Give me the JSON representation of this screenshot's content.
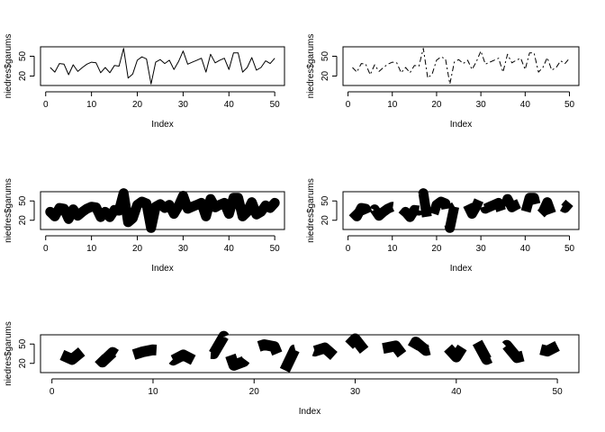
{
  "chart_data": [
    {
      "type": "line",
      "line_style": "solid",
      "line_weight": "thin",
      "xlabel": "Index",
      "ylabel": "niedres$garums",
      "xlim": [
        1,
        50
      ],
      "ylim": [
        8,
        62
      ],
      "xticks": [
        "0",
        "10",
        "20",
        "30",
        "40",
        "50"
      ],
      "yticks": [
        "20",
        "50"
      ],
      "x": [
        1,
        2,
        3,
        4,
        5,
        6,
        7,
        8,
        9,
        10,
        11,
        12,
        13,
        14,
        15,
        16,
        17,
        18,
        19,
        20,
        21,
        22,
        23,
        24,
        25,
        26,
        27,
        28,
        29,
        30,
        31,
        32,
        33,
        34,
        35,
        36,
        37,
        38,
        39,
        40,
        41,
        42,
        43,
        44,
        45,
        46,
        47,
        48,
        49,
        50
      ],
      "y": [
        33,
        26,
        39,
        38,
        22,
        37,
        27,
        33,
        38,
        41,
        40,
        25,
        33,
        25,
        36,
        35,
        62,
        17,
        23,
        44,
        49,
        46,
        8,
        41,
        45,
        39,
        44,
        30,
        42,
        58,
        38,
        41,
        44,
        47,
        26,
        53,
        40,
        44,
        47,
        30,
        55,
        55,
        26,
        33,
        48,
        29,
        33,
        43,
        39,
        47
      ]
    },
    {
      "type": "line",
      "line_style": "dashdot",
      "line_weight": "thin",
      "xlabel": "Index",
      "ylabel": "niedres$garums",
      "xlim": [
        1,
        50
      ],
      "ylim": [
        8,
        62
      ],
      "xticks": [
        "0",
        "10",
        "20",
        "30",
        "40",
        "50"
      ],
      "yticks": [
        "20",
        "50"
      ],
      "x": [
        1,
        2,
        3,
        4,
        5,
        6,
        7,
        8,
        9,
        10,
        11,
        12,
        13,
        14,
        15,
        16,
        17,
        18,
        19,
        20,
        21,
        22,
        23,
        24,
        25,
        26,
        27,
        28,
        29,
        30,
        31,
        32,
        33,
        34,
        35,
        36,
        37,
        38,
        39,
        40,
        41,
        42,
        43,
        44,
        45,
        46,
        47,
        48,
        49,
        50
      ],
      "y": [
        33,
        26,
        39,
        38,
        22,
        37,
        27,
        33,
        38,
        41,
        40,
        25,
        33,
        25,
        36,
        35,
        62,
        17,
        23,
        44,
        49,
        46,
        8,
        41,
        45,
        39,
        44,
        30,
        42,
        58,
        38,
        41,
        44,
        47,
        26,
        53,
        40,
        44,
        47,
        30,
        55,
        55,
        26,
        33,
        48,
        29,
        33,
        43,
        39,
        47
      ]
    },
    {
      "type": "line",
      "line_style": "dashed",
      "line_weight": "very thick",
      "xlabel": "Index",
      "ylabel": "niedres$garums",
      "xlim": [
        1,
        50
      ],
      "ylim": [
        8,
        62
      ],
      "xticks": [
        "0",
        "10",
        "20",
        "30",
        "40",
        "50"
      ],
      "yticks": [
        "20",
        "50"
      ],
      "x": [
        1,
        2,
        3,
        4,
        5,
        6,
        7,
        8,
        9,
        10,
        11,
        12,
        13,
        14,
        15,
        16,
        17,
        18,
        19,
        20,
        21,
        22,
        23,
        24,
        25,
        26,
        27,
        28,
        29,
        30,
        31,
        32,
        33,
        34,
        35,
        36,
        37,
        38,
        39,
        40,
        41,
        42,
        43,
        44,
        45,
        46,
        47,
        48,
        49,
        50
      ],
      "y": [
        33,
        26,
        39,
        38,
        22,
        37,
        27,
        33,
        38,
        41,
        40,
        25,
        33,
        25,
        36,
        35,
        62,
        17,
        23,
        44,
        49,
        46,
        8,
        41,
        45,
        39,
        44,
        30,
        42,
        58,
        38,
        41,
        44,
        47,
        26,
        53,
        40,
        44,
        47,
        30,
        55,
        55,
        26,
        33,
        48,
        29,
        33,
        43,
        39,
        47
      ]
    },
    {
      "type": "line",
      "line_style": "dotted",
      "line_weight": "very thick",
      "xlabel": "Index",
      "ylabel": "niedres$garums",
      "xlim": [
        1,
        50
      ],
      "ylim": [
        8,
        62
      ],
      "xticks": [
        "0",
        "10",
        "20",
        "30",
        "40",
        "50"
      ],
      "yticks": [
        "20",
        "50"
      ],
      "x": [
        1,
        2,
        3,
        4,
        5,
        6,
        7,
        8,
        9,
        10,
        11,
        12,
        13,
        14,
        15,
        16,
        17,
        18,
        19,
        20,
        21,
        22,
        23,
        24,
        25,
        26,
        27,
        28,
        29,
        30,
        31,
        32,
        33,
        34,
        35,
        36,
        37,
        38,
        39,
        40,
        41,
        42,
        43,
        44,
        45,
        46,
        47,
        48,
        49,
        50
      ],
      "y": [
        33,
        26,
        39,
        38,
        22,
        37,
        27,
        33,
        38,
        41,
        40,
        25,
        33,
        25,
        36,
        35,
        62,
        17,
        23,
        44,
        49,
        46,
        8,
        41,
        45,
        39,
        44,
        30,
        42,
        58,
        38,
        41,
        44,
        47,
        26,
        53,
        40,
        44,
        47,
        30,
        55,
        55,
        26,
        33,
        48,
        29,
        33,
        43,
        39,
        47
      ]
    },
    {
      "type": "line",
      "line_style": "dotted",
      "line_weight": "very thick",
      "xlabel": "Index",
      "ylabel": "niedres$garums",
      "xlim": [
        1,
        50
      ],
      "ylim": [
        8,
        62
      ],
      "xticks": [
        "0",
        "10",
        "20",
        "30",
        "40",
        "50"
      ],
      "yticks": [
        "20",
        "50"
      ],
      "x": [
        1,
        2,
        3,
        4,
        5,
        6,
        7,
        8,
        9,
        10,
        11,
        12,
        13,
        14,
        15,
        16,
        17,
        18,
        19,
        20,
        21,
        22,
        23,
        24,
        25,
        26,
        27,
        28,
        29,
        30,
        31,
        32,
        33,
        34,
        35,
        36,
        37,
        38,
        39,
        40,
        41,
        42,
        43,
        44,
        45,
        46,
        47,
        48,
        49,
        50
      ],
      "y": [
        33,
        26,
        39,
        38,
        22,
        37,
        27,
        33,
        38,
        41,
        40,
        25,
        33,
        25,
        36,
        35,
        62,
        17,
        23,
        44,
        49,
        46,
        8,
        41,
        45,
        39,
        44,
        30,
        42,
        58,
        38,
        41,
        44,
        47,
        26,
        53,
        40,
        44,
        47,
        30,
        55,
        55,
        26,
        33,
        48,
        29,
        33,
        43,
        39,
        47
      ]
    }
  ]
}
